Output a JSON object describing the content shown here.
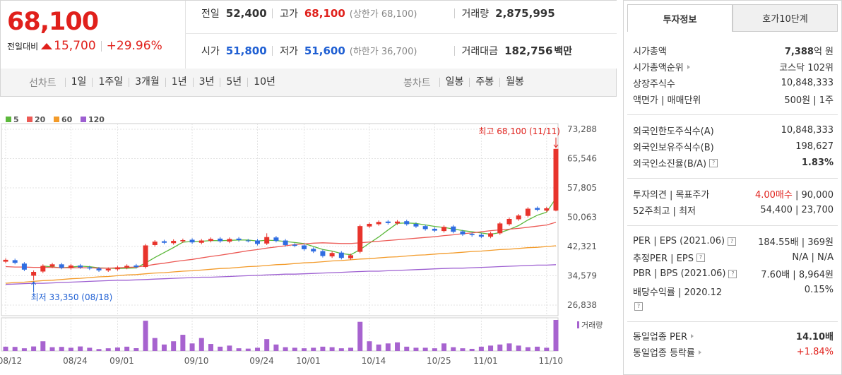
{
  "quote": {
    "price": "68,100",
    "change_label": "전일대비",
    "change": "15,700",
    "change_pct": "+29.96%"
  },
  "summary": [
    [
      {
        "label": "전일",
        "value": "52,400"
      },
      {
        "label": "고가",
        "value": "68,100",
        "color": "#e0201b",
        "note": "(상한가 68,100)"
      },
      {
        "label": "거래량",
        "value": "2,875,995"
      }
    ],
    [
      {
        "label": "시가",
        "value": "51,800",
        "color": "#1f5fd3"
      },
      {
        "label": "저가",
        "value": "51,600",
        "color": "#1f5fd3",
        "note": "(하한가 36,700)"
      },
      {
        "label": "거래대금",
        "value": "182,756",
        "unit": "백만"
      }
    ]
  ],
  "period_tabs": {
    "label": "선차트",
    "items": [
      "1일",
      "1주일",
      "3개월",
      "1년",
      "3년",
      "5년",
      "10년"
    ]
  },
  "candle_tabs": {
    "label": "봉차트",
    "items": [
      "일봉",
      "주봉",
      "월봉"
    ]
  },
  "chart_data": {
    "type": "candlestick",
    "categories": [
      "08/12",
      null,
      null,
      null,
      null,
      null,
      null,
      "08/24",
      null,
      null,
      null,
      null,
      "09/01",
      null,
      null,
      null,
      null,
      null,
      null,
      null,
      "09/10",
      null,
      null,
      null,
      null,
      null,
      null,
      "09/24",
      null,
      null,
      null,
      null,
      "10/01",
      null,
      null,
      null,
      null,
      null,
      null,
      "10/14",
      null,
      null,
      null,
      null,
      null,
      null,
      "10/25",
      null,
      null,
      null,
      null,
      "11/01",
      null,
      null,
      null,
      null,
      null,
      null,
      "11/10",
      null
    ],
    "open": [
      38300,
      38700,
      37800,
      34600,
      35700,
      37000,
      37600,
      36600,
      37300,
      36800,
      36500,
      36000,
      36300,
      36700,
      37300,
      36900,
      42700,
      43700,
      43200,
      43700,
      44100,
      43300,
      43800,
      44400,
      43600,
      44400,
      43900,
      43900,
      43100,
      44700,
      43900,
      42800,
      42600,
      41700,
      41100,
      39700,
      40700,
      39200,
      40900,
      47600,
      48200,
      48900,
      48400,
      49000,
      48300,
      47700,
      47000,
      46400,
      47600,
      46300,
      45600,
      45400,
      44900,
      45800,
      48200,
      49500,
      50400,
      52500,
      51800,
      51800
    ],
    "high": [
      39200,
      39100,
      38200,
      36000,
      37600,
      38000,
      38000,
      37700,
      37700,
      37200,
      36900,
      36800,
      37200,
      37600,
      37700,
      43000,
      44000,
      44100,
      44200,
      44400,
      44500,
      44300,
      44700,
      44800,
      44700,
      44800,
      44300,
      44300,
      45800,
      45100,
      44300,
      43200,
      43000,
      42100,
      41500,
      41000,
      41100,
      40400,
      48100,
      48700,
      49200,
      49300,
      49300,
      49400,
      48700,
      48100,
      47400,
      47900,
      48000,
      46700,
      46000,
      45800,
      46200,
      48800,
      50000,
      50900,
      52700,
      52900,
      52800,
      68100
    ],
    "low": [
      37900,
      37600,
      35800,
      33350,
      35300,
      36600,
      36300,
      36200,
      36400,
      36100,
      35600,
      35600,
      35900,
      36300,
      36500,
      36500,
      42300,
      42900,
      42800,
      43300,
      43000,
      42900,
      43400,
      43300,
      43200,
      43600,
      43400,
      42600,
      42700,
      43400,
      42300,
      42100,
      41200,
      40600,
      39400,
      39300,
      38900,
      38800,
      40500,
      47200,
      47800,
      48100,
      48000,
      47800,
      47200,
      46500,
      46100,
      46000,
      45800,
      45100,
      44900,
      44500,
      44500,
      45400,
      47800,
      49100,
      50000,
      51600,
      51400,
      51600
    ],
    "close": [
      38800,
      38000,
      36200,
      35600,
      37200,
      37600,
      36700,
      37300,
      36800,
      36500,
      36000,
      36400,
      36800,
      37200,
      36900,
      42600,
      43600,
      43300,
      43800,
      44000,
      43400,
      43900,
      44300,
      43700,
      44300,
      44000,
      43800,
      43000,
      44800,
      43800,
      42700,
      42500,
      41600,
      41000,
      39800,
      40600,
      39300,
      40000,
      47700,
      48300,
      48800,
      48500,
      48900,
      48200,
      47600,
      46900,
      46500,
      47500,
      46200,
      45500,
      45300,
      44900,
      45800,
      48400,
      49600,
      50500,
      52300,
      52000,
      52400,
      68100
    ],
    "up_color": "#e8342c",
    "down_color": "#2f6de1",
    "series": [
      {
        "name": "5",
        "color": "#5cb83b",
        "values": [
          null,
          null,
          null,
          null,
          37160,
          36920,
          36660,
          36880,
          37120,
          36980,
          36660,
          36600,
          36500,
          36580,
          36660,
          37980,
          39420,
          40720,
          42040,
          43460,
          43620,
          43680,
          43880,
          43860,
          43920,
          44040,
          44020,
          43760,
          43980,
          43880,
          43620,
          43360,
          43080,
          42320,
          41520,
          41100,
          40460,
          40140,
          41480,
          43180,
          44820,
          46660,
          48440,
          48540,
          48400,
          48020,
          47620,
          47340,
          46940,
          46520,
          46200,
          45880,
          45540,
          45980,
          46800,
          47840,
          49320,
          50560,
          51360,
          55060
        ]
      },
      {
        "name": "20",
        "color": "#ec5a55",
        "values": [
          37000,
          36900,
          36900,
          36800,
          36800,
          36800,
          36700,
          36700,
          36700,
          36700,
          36600,
          36600,
          36700,
          36800,
          36900,
          37200,
          37600,
          37900,
          38300,
          38600,
          38900,
          39300,
          39700,
          40000,
          40400,
          40800,
          41200,
          41500,
          41900,
          42200,
          42500,
          42800,
          43000,
          43200,
          43300,
          43200,
          43100,
          43100,
          43300,
          43500,
          43700,
          43900,
          44100,
          44300,
          44500,
          44700,
          44900,
          45200,
          45400,
          45700,
          45900,
          46200,
          46500,
          46700,
          46900,
          47100,
          47400,
          47700,
          48000,
          48700
        ]
      },
      {
        "name": "60",
        "color": "#f39b2a",
        "values": [
          32600,
          32800,
          32900,
          33100,
          33300,
          33400,
          33600,
          33800,
          33900,
          34100,
          34300,
          34400,
          34600,
          34800,
          34900,
          35100,
          35300,
          35400,
          35600,
          35800,
          35900,
          36100,
          36300,
          36500,
          36600,
          36800,
          37000,
          37100,
          37300,
          37500,
          37600,
          37800,
          38000,
          38100,
          38300,
          38500,
          38600,
          38800,
          39000,
          39100,
          39300,
          39500,
          39600,
          39800,
          40000,
          40100,
          40300,
          40500,
          40600,
          40800,
          41000,
          41100,
          41300,
          41500,
          41600,
          41800,
          42000,
          42100,
          42300,
          42500
        ]
      },
      {
        "name": "120",
        "color": "#9d5fd1",
        "values": [
          32300,
          32400,
          32500,
          32600,
          32600,
          32700,
          32800,
          32900,
          33000,
          33100,
          33200,
          33300,
          33400,
          33400,
          33500,
          33600,
          33700,
          33800,
          33900,
          34000,
          34100,
          34200,
          34200,
          34300,
          34400,
          34500,
          34600,
          34700,
          34800,
          34900,
          35000,
          35000,
          35100,
          35200,
          35300,
          35400,
          35500,
          35600,
          35700,
          35800,
          35800,
          35900,
          36000,
          36100,
          36200,
          36300,
          36400,
          36500,
          36600,
          36600,
          36700,
          36800,
          36900,
          37000,
          37100,
          37200,
          37300,
          37400,
          37400,
          37500
        ]
      }
    ],
    "volume": {
      "name": "거래량",
      "color": "#a763cf",
      "values": [
        400000,
        380000,
        250000,
        420000,
        900000,
        350000,
        380000,
        300000,
        420000,
        300000,
        180000,
        250000,
        320000,
        400000,
        260000,
        2800000,
        1200000,
        600000,
        900000,
        1500000,
        700000,
        1200000,
        650000,
        400000,
        500000,
        250000,
        220000,
        300000,
        1100000,
        600000,
        350000,
        300000,
        250000,
        300000,
        400000,
        350000,
        250000,
        300000,
        2700000,
        900000,
        600000,
        700000,
        800000,
        400000,
        300000,
        300000,
        250000,
        700000,
        350000,
        250000,
        200000,
        400000,
        500000,
        600000,
        700000,
        500000,
        350000,
        400000,
        300000,
        2875995
      ]
    },
    "annotations": {
      "high": "최고 68,100 (11/11)",
      "low": "최저 33,350 (08/18)"
    },
    "ylim": [
      26838,
      73288
    ],
    "yticks": [
      {
        "value": 26838,
        "label": "26,838"
      },
      {
        "value": 34579,
        "label": "34,579"
      },
      {
        "value": 42321,
        "label": "42,321"
      },
      {
        "value": 50063,
        "label": "50,063"
      },
      {
        "value": 57805,
        "label": "57,805"
      },
      {
        "value": 65546,
        "label": "65,546"
      },
      {
        "value": 73288,
        "label": "73,288"
      }
    ],
    "grid": true
  },
  "info_panel": {
    "tabs": [
      "투자정보",
      "호가10단계"
    ],
    "groups": [
      [
        {
          "label": "시가총액",
          "value": [
            {
              "text": "7,388",
              "bold": true
            },
            {
              "text": "억 원"
            }
          ]
        },
        {
          "label": "시가총액순위",
          "more": true,
          "value": [
            {
              "text": "코스닥 102위"
            }
          ]
        },
        {
          "label": "상장주식수",
          "value": [
            {
              "text": "10,848,333"
            }
          ]
        },
        {
          "label": "액면가 | 매매단위",
          "value": [
            {
              "text": "500원 | 1주"
            }
          ]
        }
      ],
      [
        {
          "label": "외국인한도주식수(A)",
          "value": [
            {
              "text": "10,848,333"
            }
          ]
        },
        {
          "label": "외국인보유주식수(B)",
          "value": [
            {
              "text": "198,627"
            }
          ]
        },
        {
          "label": "외국인소진율(B/A)",
          "help": true,
          "value": [
            {
              "text": "1.83%",
              "bold": true
            }
          ]
        }
      ],
      [
        {
          "label": "투자의견 | 목표주가",
          "value": [
            {
              "text": "4.00매수",
              "red": true
            },
            {
              "text": " | 90,000"
            }
          ]
        },
        {
          "label": "52주최고 | 최저",
          "value": [
            {
              "text": "54,400 | 23,700"
            }
          ]
        }
      ],
      [
        {
          "label": "PER | EPS (2021.06)",
          "help": true,
          "value": [
            {
              "text": "184.55배 | 369원"
            }
          ]
        },
        {
          "label": "추정PER | EPS",
          "help": true,
          "value": [
            {
              "text": "N/A | N/A"
            }
          ]
        },
        {
          "label": "PBR | BPS (2021.06)",
          "help": true,
          "value": [
            {
              "text": "7.60배 | 8,964원"
            }
          ]
        },
        {
          "label": "배당수익률 | 2020.12",
          "help": true,
          "tall": true,
          "value": [
            {
              "text": "0.15%"
            }
          ]
        }
      ],
      [
        {
          "label": "동일업종 PER",
          "more": true,
          "value": [
            {
              "text": "14.10배",
              "bold": true
            }
          ]
        },
        {
          "label": "동일업종 등락률",
          "more": true,
          "value": [
            {
              "text": "+1.84%",
              "red": true
            }
          ]
        }
      ]
    ]
  }
}
